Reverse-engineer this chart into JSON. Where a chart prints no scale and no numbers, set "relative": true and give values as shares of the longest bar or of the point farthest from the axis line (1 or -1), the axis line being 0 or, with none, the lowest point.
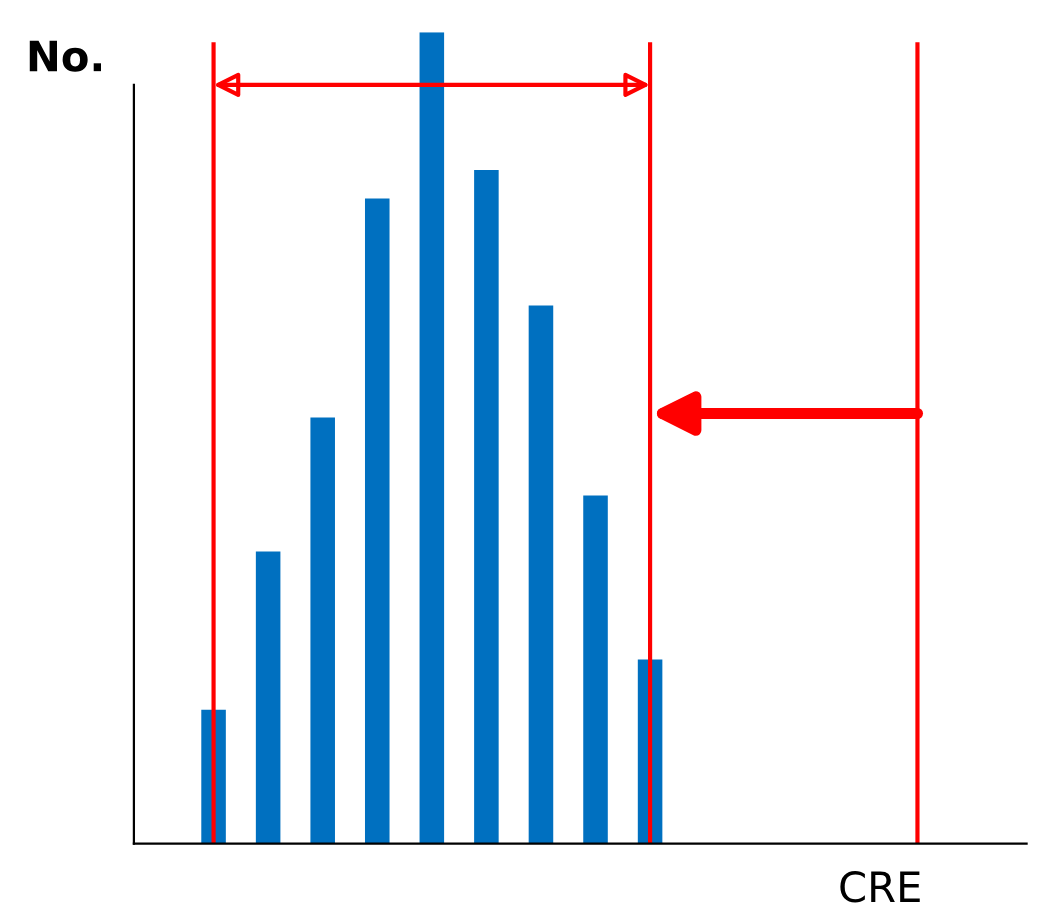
{
  "chart_data": {
    "type": "bar",
    "relative": true,
    "categories": [
      null,
      null,
      null,
      null,
      null,
      null,
      null,
      null,
      null
    ],
    "values": [
      0.165,
      0.36,
      0.525,
      0.795,
      1,
      0.83,
      0.663,
      0.429,
      0.227
    ],
    "color": "#0070c0",
    "xlabel": "CRE",
    "ylabel": "No."
  }
}
